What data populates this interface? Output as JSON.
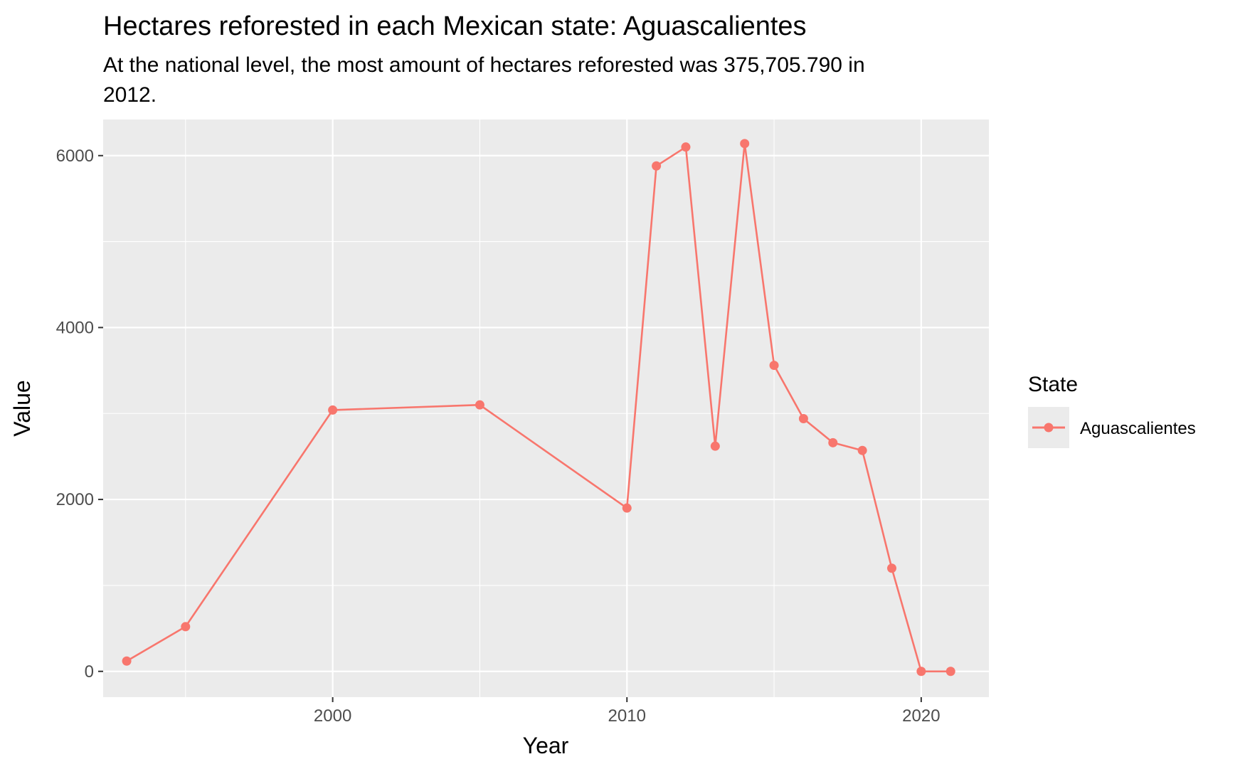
{
  "chart_data": {
    "type": "line",
    "title": "Hectares reforested in each Mexican state: Aguascalientes",
    "subtitle_lines": [
      "At the national level, the most amount of hectares reforested was 375,705.790 in",
      "2012."
    ],
    "xlabel": "Year",
    "ylabel": "Value",
    "xlim": [
      1992.2,
      2022.3
    ],
    "ylim": [
      -300,
      6420
    ],
    "x_ticks": [
      2000,
      2010,
      2020
    ],
    "x_minor_ticks": [
      1995,
      2005,
      2015
    ],
    "y_ticks": [
      0,
      2000,
      4000,
      6000
    ],
    "y_minor_ticks": [
      1000,
      3000,
      5000
    ],
    "grid": true,
    "legend": {
      "title": "State",
      "position": "right"
    },
    "colors": {
      "series": "#F8766D",
      "panel": "#EBEBEB",
      "grid": "#FFFFFF"
    },
    "series": [
      {
        "name": "Aguascalientes",
        "x": [
          1993,
          1995,
          2000,
          2005,
          2010,
          2011,
          2012,
          2013,
          2014,
          2015,
          2016,
          2017,
          2018,
          2019,
          2020,
          2021
        ],
        "values": [
          120,
          520,
          3040,
          3100,
          1900,
          5880,
          6100,
          2620,
          6140,
          3560,
          2940,
          2660,
          2570,
          1200,
          0,
          0
        ]
      }
    ]
  }
}
